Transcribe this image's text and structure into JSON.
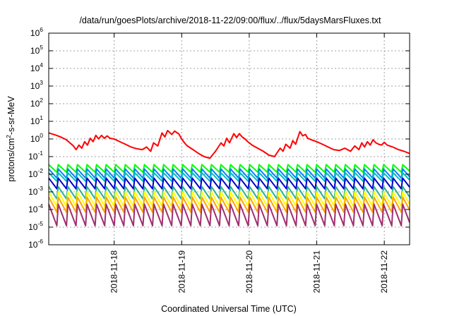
{
  "chart_data": {
    "type": "line",
    "title": "/data/run/goesPlots/archive/2018-11-22/09:00/flux/../flux/5daysMarsFluxes.txt",
    "xlabel": "Coordinated Universal Time (UTC)",
    "ylabel": {
      "base": "protons/cm",
      "sup": "2",
      "rest": "-s-sr-MeV"
    },
    "y_scale": "log",
    "ylim": [
      1e-06,
      1000000.0
    ],
    "y_ticks": [
      {
        "value": 1e-06,
        "base": "10",
        "exp": "-6"
      },
      {
        "value": 1e-05,
        "base": "10",
        "exp": "-5"
      },
      {
        "value": 0.0001,
        "base": "10",
        "exp": "-4"
      },
      {
        "value": 0.001,
        "base": "10",
        "exp": "-3"
      },
      {
        "value": 0.01,
        "base": "10",
        "exp": "-2"
      },
      {
        "value": 0.1,
        "base": "10",
        "exp": "-1"
      },
      {
        "value": 1,
        "base": "10",
        "exp": "0"
      },
      {
        "value": 10,
        "base": "10",
        "exp": "1"
      },
      {
        "value": 100,
        "base": "10",
        "exp": "2"
      },
      {
        "value": 1000,
        "base": "10",
        "exp": "3"
      },
      {
        "value": 10000,
        "base": "10",
        "exp": "4"
      },
      {
        "value": 100000,
        "base": "10",
        "exp": "5"
      },
      {
        "value": 1000000,
        "base": "10",
        "exp": "6"
      }
    ],
    "x_axis_type": "time",
    "xlim": [
      "2018-11-17T00:45",
      "2018-11-22T09:00"
    ],
    "x_ticks": [
      "2018-11-18",
      "2018-11-19",
      "2018-11-20",
      "2018-11-21",
      "2018-11-22"
    ],
    "grid": true,
    "legend": "none",
    "series": [
      {
        "color": "#ff0000",
        "x": [
          "2018-11-17T00:45",
          "2018-11-17T03:00",
          "2018-11-17T05:00",
          "2018-11-17T07:00",
          "2018-11-17T09:30",
          "2018-11-17T10:30",
          "2018-11-17T11:30",
          "2018-11-17T12:30",
          "2018-11-17T13:30",
          "2018-11-17T14:30",
          "2018-11-17T15:30",
          "2018-11-17T16:30",
          "2018-11-17T17:30",
          "2018-11-17T18:30",
          "2018-11-17T19:30",
          "2018-11-17T20:30",
          "2018-11-17T21:30",
          "2018-11-17T22:30",
          "2018-11-18T00:00",
          "2018-11-18T02:00",
          "2018-11-18T04:00",
          "2018-11-18T06:00",
          "2018-11-18T08:00",
          "2018-11-18T10:00",
          "2018-11-18T11:30",
          "2018-11-18T13:00",
          "2018-11-18T14:00",
          "2018-11-18T15:30",
          "2018-11-18T17:00",
          "2018-11-18T18:00",
          "2018-11-18T19:00",
          "2018-11-18T20:30",
          "2018-11-18T21:30",
          "2018-11-18T23:00",
          "2018-11-19T00:00",
          "2018-11-19T01:00",
          "2018-11-19T02:00",
          "2018-11-19T04:00",
          "2018-11-19T06:00",
          "2018-11-19T08:00",
          "2018-11-19T10:00",
          "2018-11-19T12:00",
          "2018-11-19T14:00",
          "2018-11-19T15:00",
          "2018-11-19T16:00",
          "2018-11-19T17:00",
          "2018-11-19T18:30",
          "2018-11-19T19:30",
          "2018-11-19T20:30",
          "2018-11-19T21:30",
          "2018-11-19T22:30",
          "2018-11-19T23:30",
          "2018-11-20T01:00",
          "2018-11-20T03:00",
          "2018-11-20T05:00",
          "2018-11-20T07:00",
          "2018-11-20T09:00",
          "2018-11-20T11:00",
          "2018-11-20T12:00",
          "2018-11-20T13:00",
          "2018-11-20T14:30",
          "2018-11-20T15:30",
          "2018-11-20T16:30",
          "2018-11-20T18:00",
          "2018-11-20T19:00",
          "2018-11-20T20:00",
          "2018-11-20T20:45",
          "2018-11-20T22:00",
          "2018-11-21T00:00",
          "2018-11-21T02:00",
          "2018-11-21T04:00",
          "2018-11-21T06:00",
          "2018-11-21T08:00",
          "2018-11-21T10:00",
          "2018-11-21T12:00",
          "2018-11-21T13:30",
          "2018-11-21T15:00",
          "2018-11-21T16:00",
          "2018-11-21T17:00",
          "2018-11-21T18:00",
          "2018-11-21T19:00",
          "2018-11-21T20:00",
          "2018-11-21T21:00",
          "2018-11-21T22:00",
          "2018-11-21T23:00",
          "2018-11-22T00:00",
          "2018-11-22T01:00",
          "2018-11-22T03:00",
          "2018-11-22T05:00",
          "2018-11-22T07:00",
          "2018-11-22T09:00"
        ],
        "y": [
          2.2,
          1.7,
          1.3,
          0.9,
          0.4,
          0.25,
          0.45,
          0.3,
          0.7,
          0.45,
          1.1,
          0.7,
          1.6,
          1.0,
          1.6,
          1.1,
          1.5,
          1.1,
          1.0,
          0.7,
          0.5,
          0.35,
          0.28,
          0.25,
          0.35,
          0.2,
          0.6,
          0.4,
          2.2,
          1.3,
          3.0,
          1.8,
          2.8,
          1.9,
          1.0,
          0.6,
          0.4,
          0.25,
          0.15,
          0.1,
          0.08,
          0.2,
          0.6,
          0.4,
          1.1,
          0.6,
          2.0,
          1.2,
          2.0,
          1.3,
          1.0,
          0.7,
          0.45,
          0.3,
          0.2,
          0.12,
          0.1,
          0.3,
          0.2,
          0.5,
          0.3,
          0.8,
          0.5,
          2.6,
          1.5,
          1.8,
          1.1,
          0.9,
          0.7,
          0.5,
          0.35,
          0.25,
          0.22,
          0.3,
          0.2,
          0.4,
          0.25,
          0.6,
          0.35,
          0.7,
          0.45,
          0.9,
          0.6,
          0.5,
          0.45,
          0.65,
          0.45,
          0.35,
          0.25,
          0.2,
          0.15
        ]
      },
      {
        "color": "#00ff00",
        "x_start": "2018-11-17T00:45",
        "period_hours": 3.4,
        "peak": 0.035,
        "trough": 0.013
      },
      {
        "color": "#0080ff",
        "x_start": "2018-11-17T00:45",
        "period_hours": 3.4,
        "peak": 0.02,
        "trough": 0.006
      },
      {
        "color": "#00c0c0",
        "x_start": "2018-11-17T00:45",
        "period_hours": 3.4,
        "peak": 0.012,
        "trough": 0.004
      },
      {
        "color": "#0000cc",
        "x_start": "2018-11-17T00:45",
        "period_hours": 3.4,
        "peak": 0.006,
        "trough": 0.0015
      },
      {
        "color": "#2ab090",
        "x_start": "2018-11-17T00:45",
        "period_hours": 3.4,
        "peak": 0.002,
        "trough": 0.0004
      },
      {
        "color": "#ffff00",
        "x_start": "2018-11-17T00:45",
        "period_hours": 3.4,
        "peak": 0.001,
        "trough": 0.00015
      },
      {
        "color": "#ffa500",
        "x_start": "2018-11-17T00:45",
        "period_hours": 3.4,
        "peak": 0.0005,
        "trough": 7e-05
      },
      {
        "color": "#a03070",
        "x_start": "2018-11-17T00:45",
        "period_hours": 3.4,
        "peak": 0.0002,
        "trough": 1.2e-05
      }
    ]
  }
}
